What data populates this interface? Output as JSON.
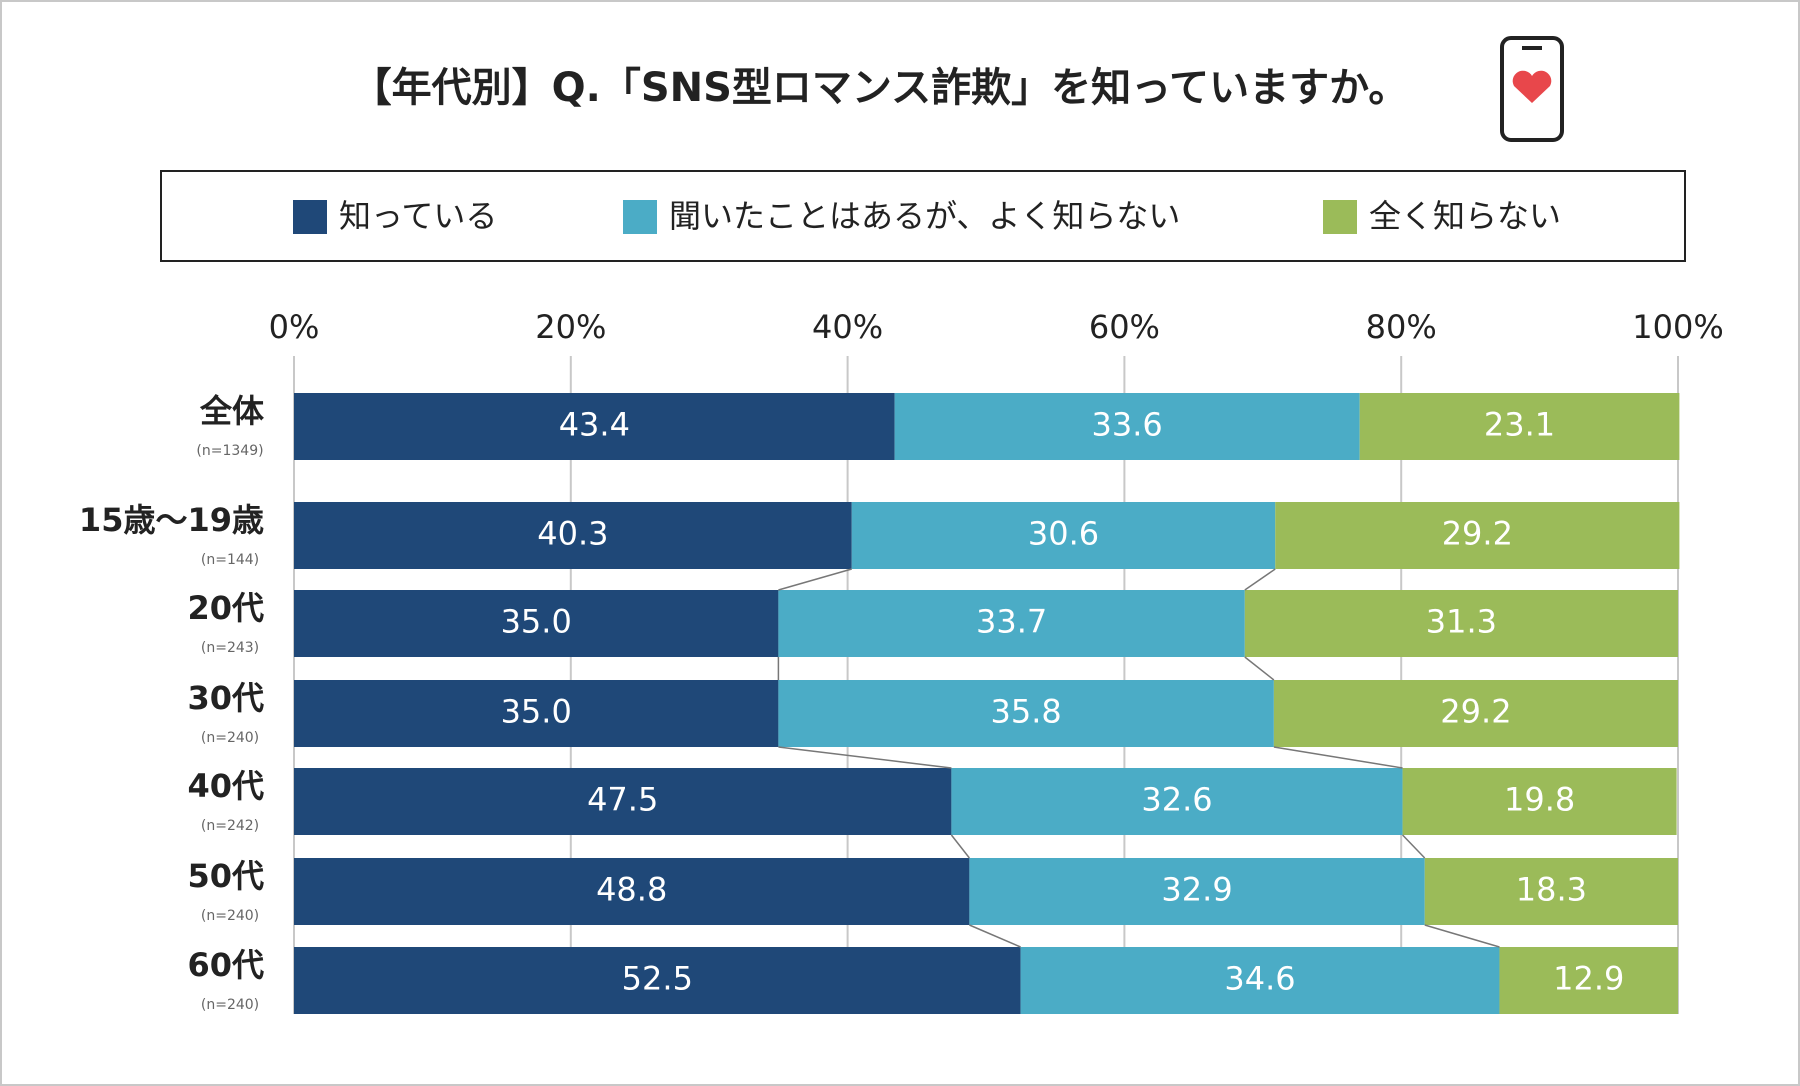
{
  "chart_data": {
    "type": "stacked_bar_horizontal",
    "title": "【年代別】Q.「SNS型ロマンス詐欺」を知っていますか。",
    "categories": [
      "全体",
      "15歳～19歳",
      "20代",
      "30代",
      "40代",
      "50代",
      "60代"
    ],
    "sample_sizes": [
      "(n=1349)",
      "(n=144)",
      "(n=243)",
      "(n=240)",
      "(n=242)",
      "(n=240)",
      "(n=240)"
    ],
    "series": [
      {
        "name": "知っている",
        "color": "#1f4878",
        "values": [
          43.4,
          40.3,
          35,
          35,
          47.5,
          48.8,
          52.5
        ],
        "value_labels": [
          "43.4",
          "40.3",
          "35.0",
          "35.0",
          "47.5",
          "48.8",
          "52.5"
        ]
      },
      {
        "name": "聞いたことはあるが、よく知らない",
        "color": "#4bacc6",
        "values": [
          33.6,
          30.6,
          33.7,
          35.8,
          32.6,
          32.9,
          34.6
        ],
        "value_labels": [
          "33.6",
          "30.6",
          "33.7",
          "35.8",
          "32.6",
          "32.9",
          "34.6"
        ]
      },
      {
        "name": "全く知らない",
        "color": "#9bbb59",
        "values": [
          23.1,
          29.2,
          31.3,
          29.2,
          19.8,
          18.3,
          12.9
        ],
        "value_labels": [
          "23.1",
          "29.2",
          "31.3",
          "29.2",
          "19.8",
          "18.3",
          "12.9"
        ]
      }
    ],
    "xlim": [
      0,
      100
    ],
    "xticks": [
      {
        "value": 0,
        "label": "0%"
      },
      {
        "value": 20,
        "label": "20%"
      },
      {
        "value": 40,
        "label": "40%"
      },
      {
        "value": 60,
        "label": "60%"
      },
      {
        "value": 80,
        "label": "80%"
      },
      {
        "value": 100,
        "label": "100%"
      }
    ],
    "grid": true
  }
}
